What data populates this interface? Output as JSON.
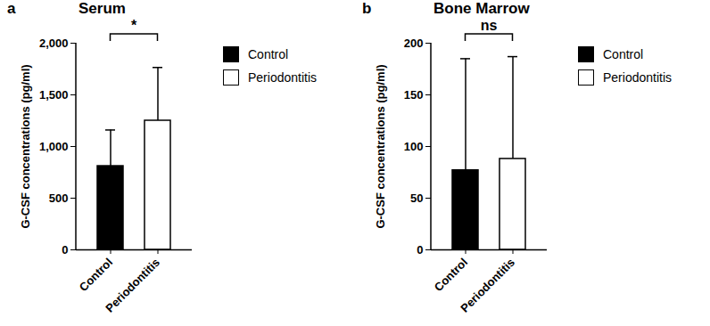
{
  "chart_data": [
    {
      "type": "bar",
      "panel": "a",
      "title": "Serum",
      "y_label": "G-CSF concentrations (pg/ml)",
      "categories": [
        "Control",
        "Periodontitis"
      ],
      "values": [
        810,
        1250
      ],
      "errors": [
        350,
        515
      ],
      "colors": [
        "#000000",
        "#ffffff"
      ],
      "ylim": [
        0,
        2000
      ],
      "yticks": [
        0,
        500,
        1000,
        1500,
        2000
      ],
      "annotations": [
        {
          "text": "*",
          "between": [
            "Control",
            "Periodontitis"
          ]
        }
      ],
      "legend": "right"
    },
    {
      "type": "bar",
      "panel": "b",
      "title": "Bone Marrow",
      "y_label": "G-CSF concentrations (pg/ml)",
      "categories": [
        "Control",
        "Periodontitis"
      ],
      "values": [
        77,
        88
      ],
      "errors": [
        108,
        99
      ],
      "colors": [
        "#000000",
        "#ffffff"
      ],
      "ylim": [
        0,
        200
      ],
      "yticks": [
        0,
        50,
        100,
        150,
        200
      ],
      "annotations": [
        {
          "text": "ns",
          "between": [
            "Control",
            "Periodontitis"
          ]
        }
      ],
      "legend": "right"
    }
  ]
}
